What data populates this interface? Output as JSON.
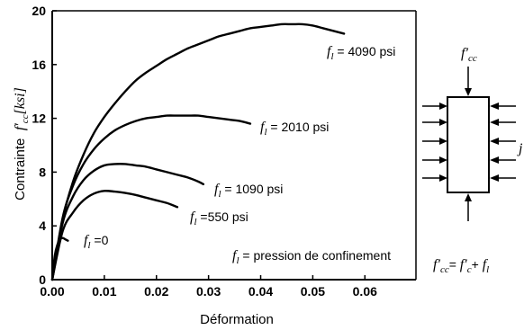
{
  "chart_data": {
    "type": "line",
    "xlabel": "Déformation",
    "ylabel_parts": {
      "main": "Contrainte",
      "symbol": "f′",
      "sub": "cc",
      "unit": "[ksi]"
    },
    "xlim": [
      0,
      0.06
    ],
    "ylim": [
      0,
      20
    ],
    "x_ticks": [
      0.0,
      0.01,
      0.02,
      0.03,
      0.04,
      0.05,
      0.06
    ],
    "x_tick_labels": [
      "0.00",
      "0.01",
      "0.02",
      "0.03",
      "0.04",
      "0.05",
      "0.06"
    ],
    "y_ticks": [
      0,
      4,
      8,
      12,
      16,
      20
    ],
    "y_tick_labels": [
      "0",
      "4",
      "8",
      "12",
      "16",
      "20"
    ],
    "grid": false,
    "series": [
      {
        "label_symbol": "f",
        "label_sub": "l",
        "label_value": " =0",
        "x": [
          0.0,
          0.0005,
          0.001,
          0.0015,
          0.002,
          0.0025,
          0.003
        ],
        "y": [
          0.0,
          1.8,
          2.6,
          3.0,
          3.1,
          3.0,
          2.9
        ]
      },
      {
        "label_symbol": "f",
        "label_sub": "l",
        "label_value": " =550 psi",
        "x": [
          0.0,
          0.002,
          0.004,
          0.006,
          0.008,
          0.01,
          0.012,
          0.014,
          0.016,
          0.018,
          0.02,
          0.022,
          0.024
        ],
        "y": [
          0.0,
          3.6,
          5.0,
          5.9,
          6.4,
          6.6,
          6.55,
          6.45,
          6.3,
          6.1,
          5.9,
          5.7,
          5.4
        ]
      },
      {
        "label_symbol": "f",
        "label_sub": "l",
        "label_value": " = 1090 psi",
        "x": [
          0.0,
          0.002,
          0.004,
          0.006,
          0.008,
          0.01,
          0.012,
          0.014,
          0.016,
          0.018,
          0.02,
          0.022,
          0.024,
          0.026,
          0.028,
          0.029
        ],
        "y": [
          0.0,
          4.2,
          6.2,
          7.4,
          8.1,
          8.5,
          8.6,
          8.6,
          8.5,
          8.4,
          8.2,
          8.0,
          7.8,
          7.6,
          7.3,
          7.1
        ]
      },
      {
        "label_symbol": "f",
        "label_sub": "l",
        "label_value": " = 2010 psi",
        "x": [
          0.0,
          0.002,
          0.004,
          0.006,
          0.008,
          0.01,
          0.012,
          0.014,
          0.016,
          0.018,
          0.02,
          0.022,
          0.024,
          0.026,
          0.028,
          0.03,
          0.032,
          0.034,
          0.036,
          0.038
        ],
        "y": [
          0.0,
          4.6,
          7.0,
          8.6,
          9.7,
          10.5,
          11.1,
          11.5,
          11.8,
          12.0,
          12.1,
          12.2,
          12.2,
          12.2,
          12.2,
          12.1,
          12.0,
          11.9,
          11.8,
          11.6
        ]
      },
      {
        "label_symbol": "f",
        "label_sub": "l",
        "label_value": " = 4090 psi",
        "x": [
          0.0,
          0.002,
          0.004,
          0.006,
          0.008,
          0.01,
          0.012,
          0.014,
          0.016,
          0.018,
          0.02,
          0.022,
          0.024,
          0.026,
          0.028,
          0.03,
          0.032,
          0.034,
          0.036,
          0.038,
          0.04,
          0.042,
          0.044,
          0.046,
          0.048,
          0.05,
          0.052,
          0.054,
          0.056
        ],
        "y": [
          0.0,
          4.5,
          7.3,
          9.3,
          10.9,
          12.1,
          13.1,
          14.0,
          14.8,
          15.4,
          15.9,
          16.4,
          16.8,
          17.2,
          17.5,
          17.8,
          18.1,
          18.3,
          18.5,
          18.7,
          18.8,
          18.9,
          19.0,
          19.0,
          19.0,
          18.9,
          18.7,
          18.5,
          18.3
        ]
      }
    ],
    "annotation": {
      "symbol": "f",
      "sub": "l",
      "text": " = pression de confinement"
    }
  },
  "diagram": {
    "top_label": {
      "symbol": "f′",
      "sub": "cc"
    },
    "side_label": "j",
    "formula": {
      "a": "f′",
      "a_sub": "cc",
      "eq": "= ",
      "b": "f′",
      "b_sub": "c",
      "plus": "+ ",
      "c": "f",
      "c_sub": "l"
    }
  }
}
